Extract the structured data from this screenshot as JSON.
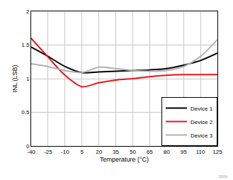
{
  "chart_data": {
    "type": "line",
    "x_label": "Temperature (°C)",
    "y_label": "INL (LSB)",
    "x": [
      -40,
      -25,
      -10,
      5,
      20,
      35,
      50,
      65,
      80,
      95,
      110,
      125
    ],
    "series": [
      {
        "name": "Device 1",
        "color": "#000000",
        "values": [
          1.47,
          1.33,
          1.18,
          1.09,
          1.1,
          1.11,
          1.12,
          1.13,
          1.15,
          1.2,
          1.27,
          1.38
        ]
      },
      {
        "name": "Device 2",
        "color": "#e8141c",
        "values": [
          1.6,
          1.32,
          1.05,
          0.88,
          0.94,
          0.98,
          1.0,
          1.03,
          1.05,
          1.06,
          1.06,
          1.06
        ]
      },
      {
        "name": "Device 3",
        "color": "#b0b0b0",
        "values": [
          1.22,
          1.18,
          1.12,
          1.09,
          1.17,
          1.15,
          1.12,
          1.11,
          1.12,
          1.18,
          1.33,
          1.58
        ]
      }
    ],
    "xlim": [
      -40,
      125
    ],
    "xticks": [
      -40,
      -25,
      -10,
      5,
      20,
      35,
      50,
      65,
      80,
      95,
      110,
      125
    ],
    "ylim": [
      0,
      2
    ],
    "yticks": [
      0,
      0.5,
      1,
      1.5,
      2
    ],
    "grid": true,
    "legend": "bottom right",
    "annotations": [
      "D004"
    ]
  }
}
